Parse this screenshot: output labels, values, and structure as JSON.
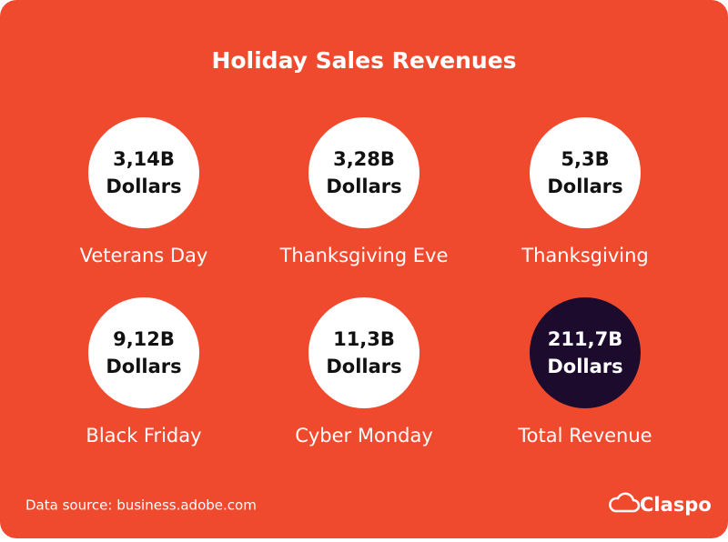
{
  "header": {
    "title": "Holiday Sales Revenues"
  },
  "items": [
    {
      "value": "3,14B",
      "unit": "Dollars",
      "label": "Veterans Day",
      "color": "#ffffff",
      "text_color": "#111111"
    },
    {
      "value": "3,28B",
      "unit": "Dollars",
      "label": "Thanksgiving Eve",
      "color": "#ffffff",
      "text_color": "#111111"
    },
    {
      "value": "5,3B",
      "unit": "Dollars",
      "label": "Thanksgiving",
      "color": "#ffffff",
      "text_color": "#111111"
    },
    {
      "value": "9,12B",
      "unit": "Dollars",
      "label": "Black Friday",
      "color": "#ffffff",
      "text_color": "#111111"
    },
    {
      "value": "11,3B",
      "unit": "Dollars",
      "label": "Cyber Monday",
      "color": "#ffffff",
      "text_color": "#111111"
    },
    {
      "value": "211,7B",
      "unit": "Dollars",
      "label": "Total Revenue",
      "color": "#1d0b2e",
      "text_color": "#ffffff"
    }
  ],
  "footer": {
    "source": "Data source: business.adobe.com",
    "brand": "Claspo"
  }
}
